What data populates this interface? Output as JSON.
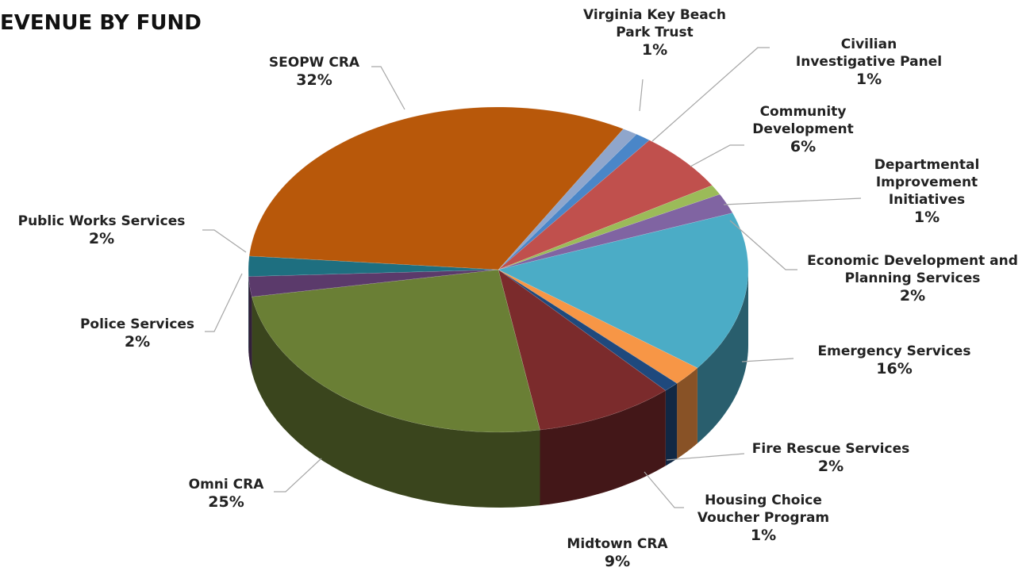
{
  "chart_data": {
    "type": "pie",
    "title": "EVENUE BY FUND",
    "categories": [
      "Virginia Key Beach Park Trust",
      "Civilian Investigative Panel",
      "Community Development",
      "Departmental Improvement Initiatives",
      "Economic Development and Planning Services",
      "Emergency Services",
      "Fire Rescue Services",
      "Housing Choice Voucher Program",
      "Midtown CRA",
      "Omni CRA",
      "Police Services",
      "Public Works Services",
      "SEOPW CRA"
    ],
    "values": [
      1,
      1,
      6,
      1,
      2,
      16,
      2,
      1,
      9,
      25,
      2,
      2,
      32
    ],
    "value_labels": [
      "1%",
      "1%",
      "6%",
      "1%",
      "2%",
      "16%",
      "2%",
      "1%",
      "9%",
      "25%",
      "2%",
      "2%",
      "32%"
    ],
    "colors": [
      "#8fa6cc",
      "#4a86c8",
      "#c0504d",
      "#9bbb59",
      "#8064a2",
      "#4bacc6",
      "#f79646",
      "#1f497d",
      "#7b2b2c",
      "#6a7f35",
      "#5b3a6b",
      "#1e6f80",
      "#b8580a"
    ]
  }
}
